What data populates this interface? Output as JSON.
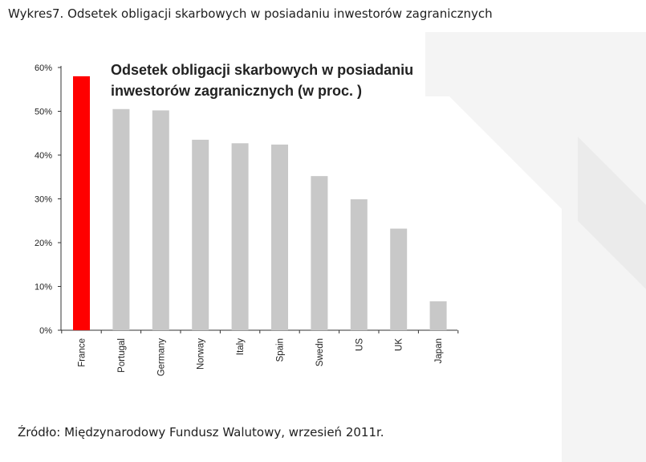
{
  "caption": "Wykres7. Odsetek obligacji skarbowych w posiadaniu inwestorów zagranicznych",
  "source_note": "Źródło: Międzynarodowy Fundusz Walutowy, wrzesień 2011r.",
  "chart_data": {
    "type": "bar",
    "title": "Odsetek obligacji skarbowych w posiadaniu",
    "title_line2": "inwestorów zagranicznych (w proc. )",
    "categories": [
      "France",
      "Portugal",
      "Germany",
      "Norway",
      "Italy",
      "Spain",
      "Swedn",
      "US",
      "UK",
      "Japan"
    ],
    "values": [
      58,
      50.5,
      50.2,
      43.5,
      42.7,
      42.4,
      35.2,
      29.9,
      23.2,
      6.6
    ],
    "unit": "%",
    "ylim": [
      0,
      60
    ],
    "yticks": [
      0,
      10,
      20,
      30,
      40,
      50,
      60
    ],
    "ytick_labels": [
      "0%",
      "10%",
      "20%",
      "30%",
      "40%",
      "50%",
      "60%"
    ],
    "xlabel": "",
    "ylabel": "",
    "grid": false,
    "colors": {
      "highlight": "#ff0000",
      "bar": "#c8c8c8",
      "axis": "#333333"
    },
    "highlight_index": 0
  }
}
